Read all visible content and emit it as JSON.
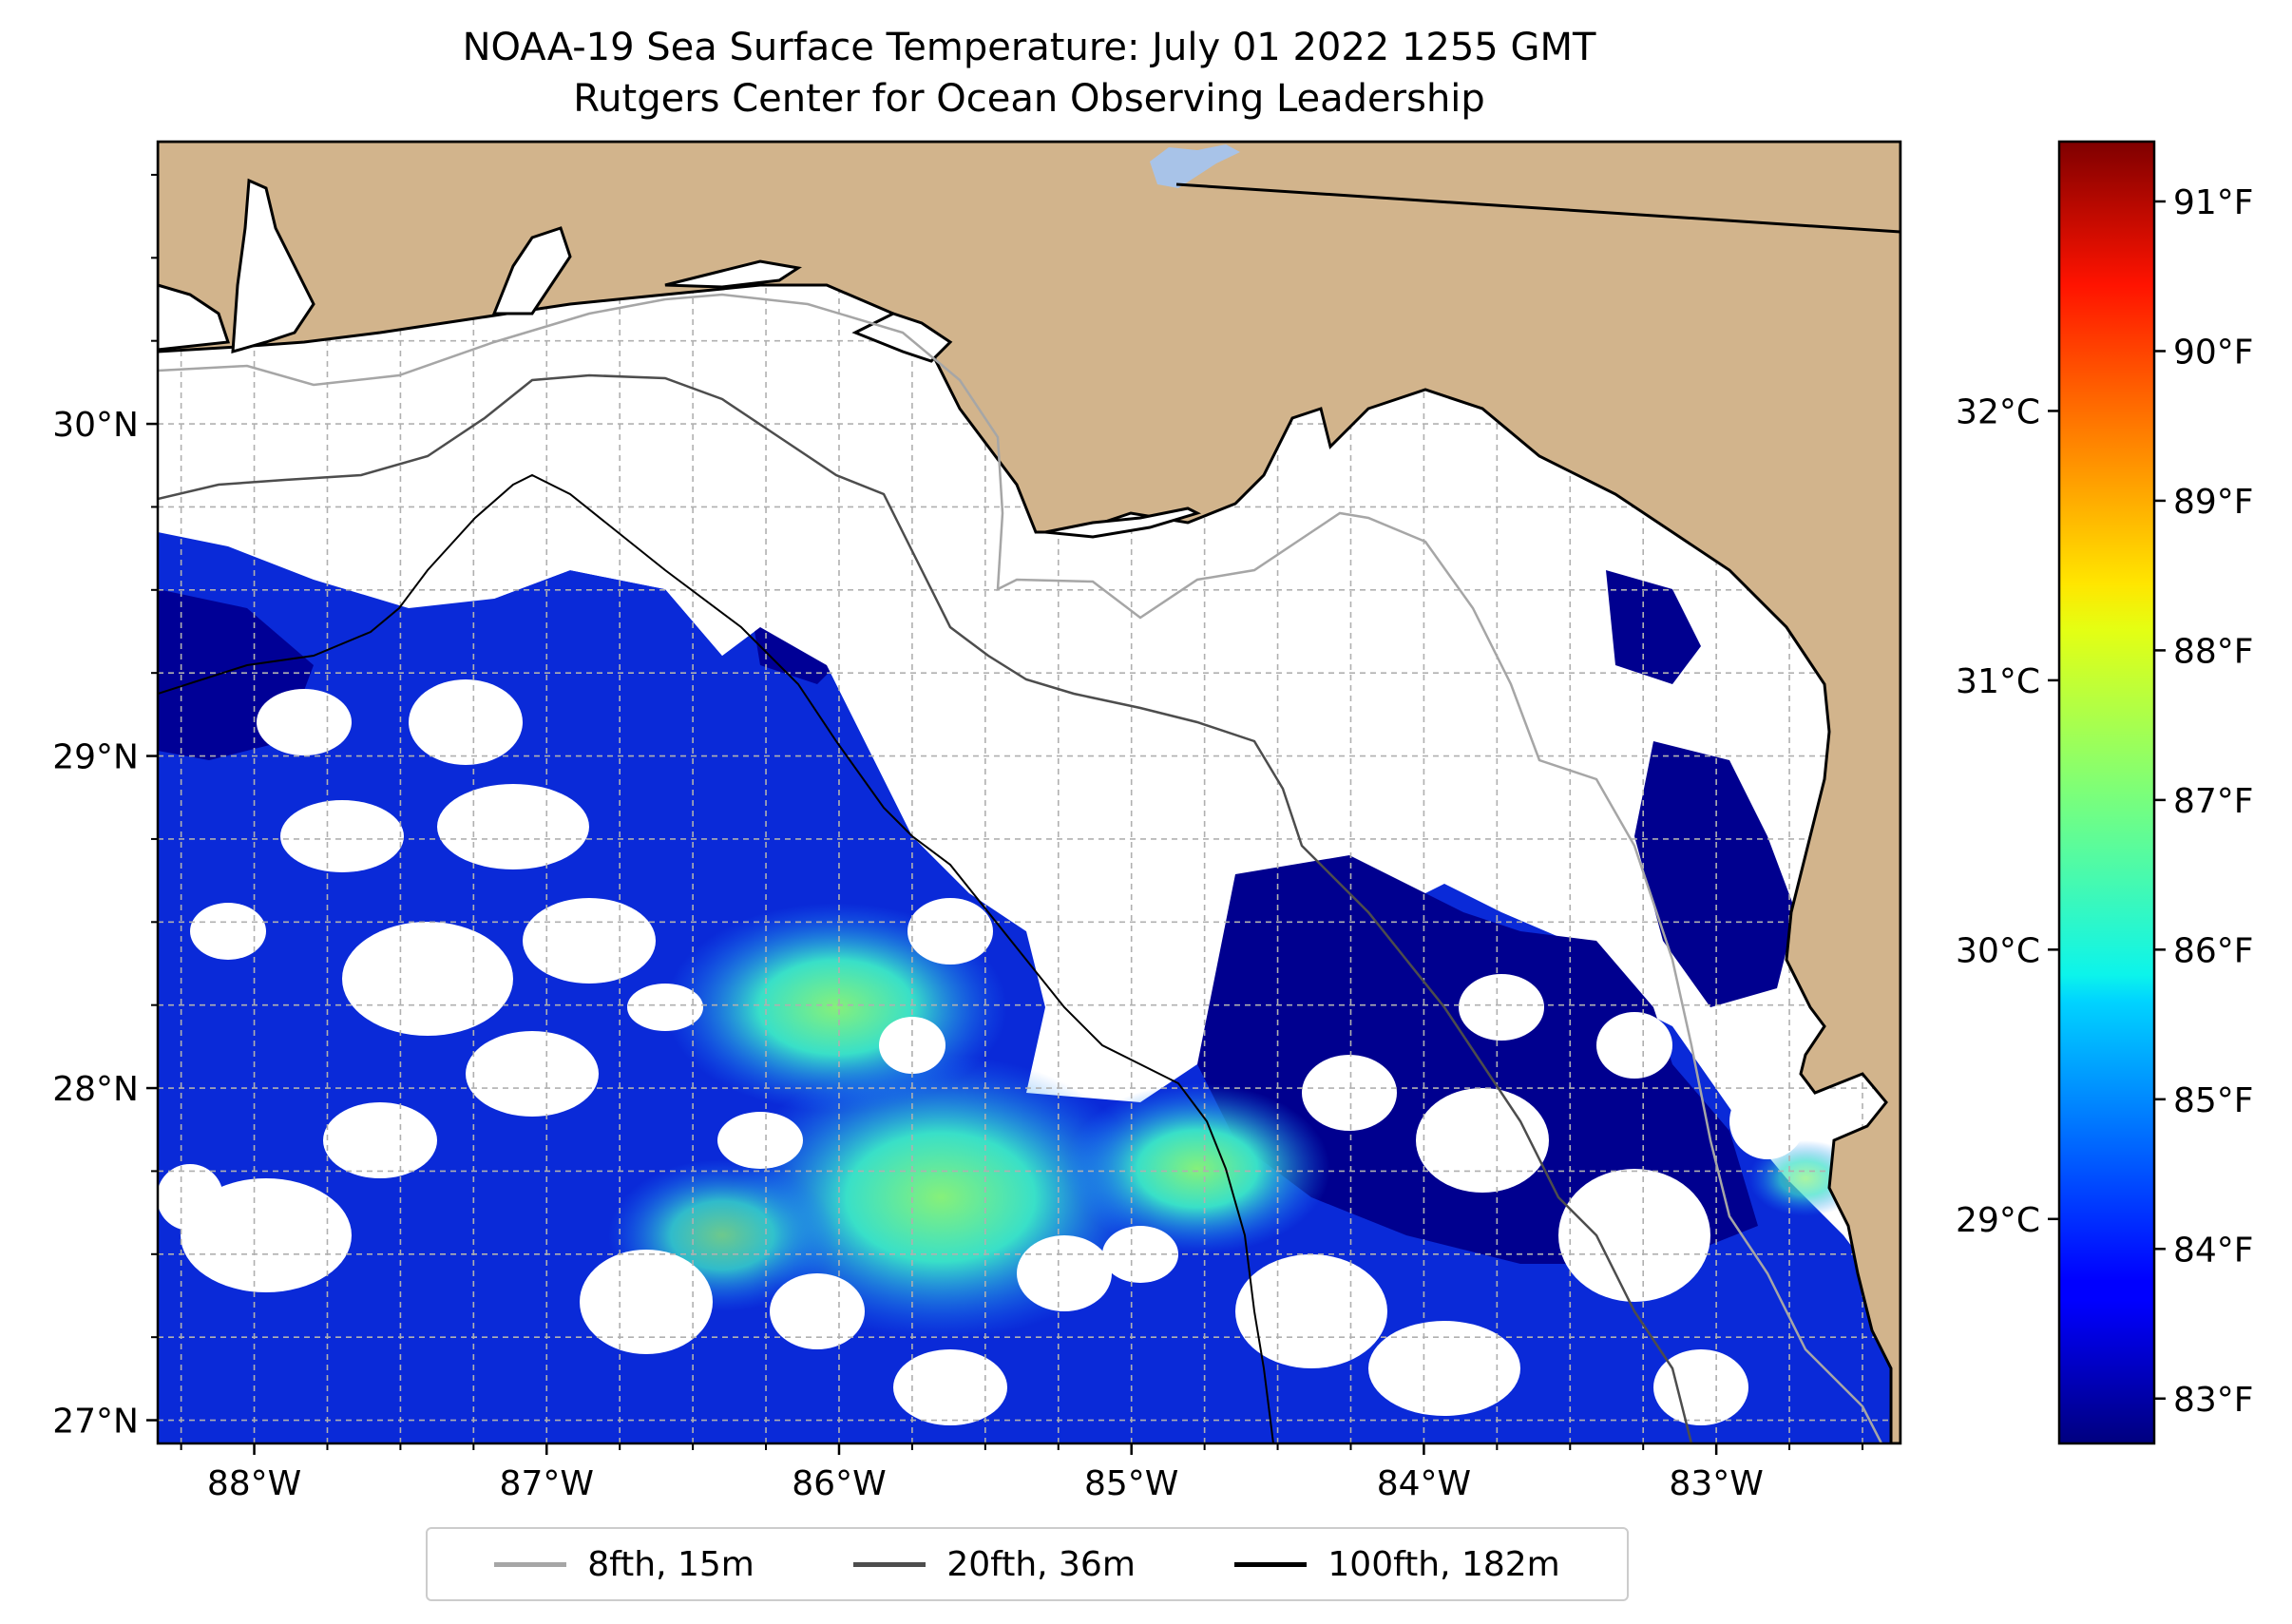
{
  "title": {
    "line1": "NOAA-19 Sea Surface Temperature: July 01 2022 1255 GMT",
    "line2": "Rutgers Center for Ocean Observing Leadership"
  },
  "map": {
    "lon_range": [
      -88.33,
      -82.37
    ],
    "lat_range": [
      26.93,
      30.85
    ],
    "lon_ticks": [
      {
        "value": -88,
        "label": "88°W"
      },
      {
        "value": -87,
        "label": "87°W"
      },
      {
        "value": -86,
        "label": "86°W"
      },
      {
        "value": -85,
        "label": "85°W"
      },
      {
        "value": -84,
        "label": "84°W"
      },
      {
        "value": -83,
        "label": "83°W"
      }
    ],
    "lat_ticks": [
      {
        "value": 30,
        "label": "30°N"
      },
      {
        "value": 29,
        "label": "29°N"
      },
      {
        "value": 28,
        "label": "28°N"
      },
      {
        "value": 27,
        "label": "27°N"
      }
    ],
    "gridlines": "dashed grey at 0.25° spacing",
    "colors": {
      "land": "#d2b48c",
      "lake": "#a8c3e8",
      "cloud_mask": "#ffffff",
      "coastline": "#000000"
    }
  },
  "colorbar": {
    "colormap": "jet",
    "range_f": [
      82.7,
      91.4
    ],
    "f_ticks": [
      {
        "value": 83,
        "label": "83°F"
      },
      {
        "value": 84,
        "label": "84°F"
      },
      {
        "value": 85,
        "label": "85°F"
      },
      {
        "value": 86,
        "label": "86°F"
      },
      {
        "value": 87,
        "label": "87°F"
      },
      {
        "value": 88,
        "label": "88°F"
      },
      {
        "value": 89,
        "label": "89°F"
      },
      {
        "value": 90,
        "label": "90°F"
      },
      {
        "value": 91,
        "label": "91°F"
      }
    ],
    "c_ticks": [
      {
        "value": 29,
        "label": "29°C"
      },
      {
        "value": 30,
        "label": "30°C"
      },
      {
        "value": 31,
        "label": "31°C"
      },
      {
        "value": 32,
        "label": "32°C"
      }
    ]
  },
  "legend": {
    "placement": "below map",
    "items": [
      {
        "label": "8fth, 15m",
        "color": "#a6a6a6"
      },
      {
        "label": "20fth, 36m",
        "color": "#4d4d4d"
      },
      {
        "label": "100fth, 182m",
        "color": "#000000"
      }
    ]
  }
}
